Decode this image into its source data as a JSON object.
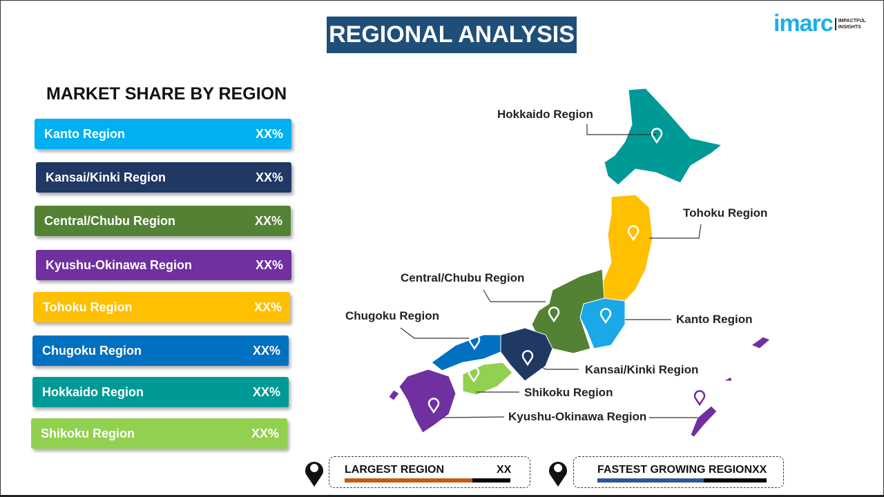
{
  "title": "REGIONAL ANALYSIS",
  "logo": {
    "brand": "imarc",
    "tagline1": "IMPACTFUL",
    "tagline2": "INSIGHTS"
  },
  "subtitle": "MARKET SHARE BY REGION",
  "regions": [
    {
      "name": "Kanto Region",
      "value": "XX%",
      "color": "#00b0f0"
    },
    {
      "name": "Kansai/Kinki Region",
      "value": "XX%",
      "color": "#1f3864"
    },
    {
      "name": "Central/Chubu Region",
      "value": "XX%",
      "color": "#548235"
    },
    {
      "name": "Kyushu-Okinawa Region",
      "value": "XX%",
      "color": "#7030a0"
    },
    {
      "name": "Tohoku Region",
      "value": "XX%",
      "color": "#ffc000"
    },
    {
      "name": "Chugoku Region",
      "value": "XX%",
      "color": "#0070c0"
    },
    {
      "name": "Hokkaido Region",
      "value": "XX%",
      "color": "#009a96"
    },
    {
      "name": "Shikoku Region",
      "value": "XX%",
      "color": "#92d050"
    }
  ],
  "map_labels": {
    "hokkaido": "Hokkaido Region",
    "tohoku": "Tohoku Region",
    "central": "Central/Chubu Region",
    "chugoku": "Chugoku Region",
    "kanto": "Kanto Region",
    "kansai": "Kansai/Kinki Region",
    "shikoku": "Shikoku Region",
    "kyushu": "Kyushu-Okinawa Region"
  },
  "largest": {
    "label": "LARGEST REGION",
    "value": "XX",
    "color": "#c55a11",
    "fill_percent": 77
  },
  "fastest": {
    "label": "FASTEST GROWING REGION",
    "value": "XX",
    "color": "#2f5597",
    "fill_percent": 63
  }
}
